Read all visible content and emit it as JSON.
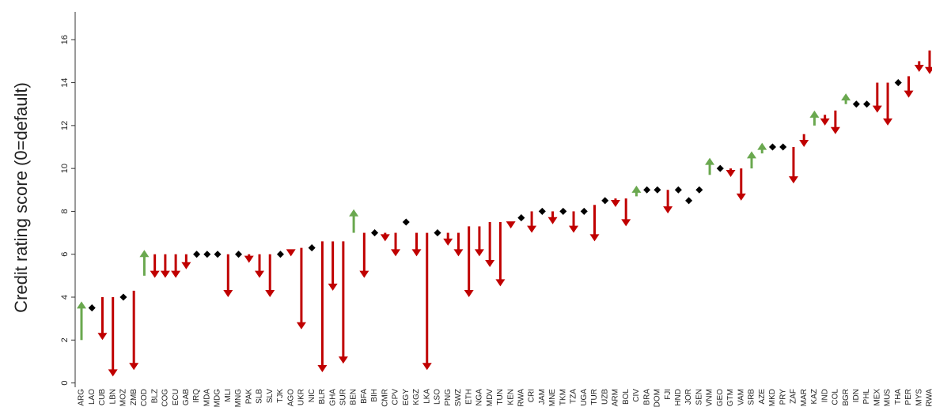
{
  "chart_data": {
    "type": "arrow",
    "y_label": "Credit rating score (0=default)",
    "categories": [
      "ARG",
      "LAO",
      "CUB",
      "LBN",
      "MOZ",
      "ZMB",
      "COD",
      "BLZ",
      "COG",
      "ECU",
      "GAB",
      "IRQ",
      "MDA",
      "MDG",
      "MLI",
      "MNG",
      "PAK",
      "SLB",
      "SLV",
      "TJK",
      "AGO",
      "UKR",
      "NIC",
      "BLR",
      "GHA",
      "SUR",
      "BEN",
      "BFA",
      "BIH",
      "CMR",
      "CPV",
      "EGY",
      "KGZ",
      "LKA",
      "LSO",
      "PNG",
      "SWZ",
      "ETH",
      "NGA",
      "MDV",
      "TUN",
      "KEN",
      "RWA",
      "CRI",
      "JAM",
      "MNE",
      "TKM",
      "TZA",
      "UGA",
      "TUR",
      "UZB",
      "ARM",
      "BOL",
      "CIV",
      "BRA",
      "DOM",
      "FJI",
      "HND",
      "JOR",
      "SEN",
      "VNM",
      "GEO",
      "GTM",
      "VAM",
      "SRB",
      "AZE",
      "MKD",
      "PRY",
      "ZAF",
      "MAR",
      "KAZ",
      "IND",
      "COL",
      "BGR",
      "IDN",
      "PHL",
      "MEX",
      "MUS",
      "THA",
      "PER",
      "MYS",
      "RWA"
    ],
    "start": [
      2,
      3.5,
      4,
      4,
      4,
      4.3,
      5,
      6,
      6,
      6,
      6,
      6,
      6,
      6,
      6,
      6,
      6,
      6,
      6,
      6,
      6.2,
      6.3,
      6.3,
      6.6,
      6.6,
      6.6,
      7,
      7,
      7,
      7,
      7,
      7.5,
      7,
      7,
      7,
      7,
      7,
      7.3,
      7.3,
      7.5,
      7.5,
      7.5,
      7.7,
      8,
      8,
      8,
      8,
      8,
      8,
      8.3,
      8.5,
      8.6,
      8.6,
      8.7,
      9,
      9,
      9,
      9,
      8.5,
      9,
      9.7,
      10,
      10,
      10,
      10,
      10.7,
      11,
      11,
      11,
      11.6,
      12,
      12.5,
      12.7,
      13,
      13,
      13,
      14,
      14,
      14,
      14.3,
      15,
      15.5
    ],
    "end": [
      3.8,
      3.5,
      2,
      0.3,
      4,
      0.6,
      6.2,
      4.9,
      4.9,
      4.9,
      5.3,
      6,
      6,
      6,
      4,
      6,
      5.6,
      4.9,
      4,
      6,
      5.9,
      2.5,
      6.3,
      0.5,
      4.3,
      0.9,
      8.1,
      4.9,
      7,
      6.6,
      5.9,
      7.5,
      5.9,
      0.6,
      7,
      6.4,
      5.9,
      4,
      5.9,
      5.4,
      4.5,
      7.2,
      7.7,
      7,
      8,
      7.4,
      8,
      7,
      8,
      6.6,
      8.5,
      8.2,
      7.3,
      9.2,
      9,
      9,
      7.9,
      9,
      8.5,
      9,
      10.5,
      10,
      9.6,
      8.5,
      10.8,
      11.2,
      11,
      11,
      9.3,
      11,
      12.7,
      12,
      11.6,
      13.5,
      13,
      13,
      12.6,
      12,
      14,
      13.3,
      14.5,
      14.4
    ],
    "color_up": "#6aa84f",
    "color_down": "#c00000",
    "color_same": "#000000",
    "ylim": [
      -0.2,
      17.3
    ],
    "yticks": [
      0,
      2,
      4,
      6,
      8,
      10,
      12,
      14,
      16
    ]
  }
}
